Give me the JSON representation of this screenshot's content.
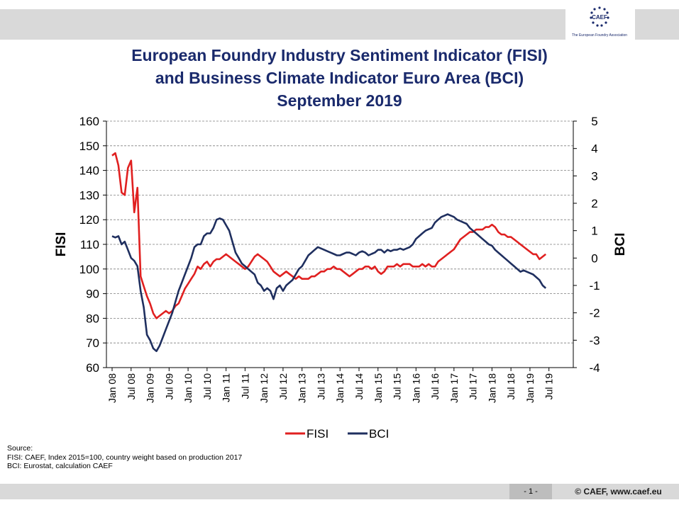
{
  "header": {
    "logo_text": "CAEF",
    "logo_subtitle": "The European Foundry Association"
  },
  "title_lines": [
    "European Foundry Industry Sentiment Indicator (FISI)",
    "and Business Climate Indicator Euro Area (BCI)",
    "September 2019"
  ],
  "chart_data": {
    "type": "line",
    "left_axis": {
      "label": "FISI",
      "range": [
        60,
        160
      ],
      "ticks": [
        "160",
        "150",
        "140",
        "130",
        "120",
        "110",
        "100",
        "90",
        "80",
        "70",
        "60"
      ]
    },
    "right_axis": {
      "label": "BCI",
      "range": [
        -4,
        5
      ],
      "ticks": [
        "5",
        "4",
        "3",
        "2",
        "1",
        "0",
        "-1",
        "-2",
        "-3",
        "-4"
      ]
    },
    "x_ticks": [
      "Jan 08",
      "Jul 08",
      "Jan 09",
      "Jul 09",
      "Jan 10",
      "Jul 10",
      "Jan 11",
      "Jul 11",
      "Jan 12",
      "Jul 12",
      "Jan 13",
      "Jul 13",
      "Jan 14",
      "Jul 14",
      "Jan 15",
      "Jul 15",
      "Jan 16",
      "Jul 16",
      "Jan 17",
      "Jul 17",
      "Jan 18",
      "Jul 18",
      "Jan 19",
      "Jul 19"
    ],
    "grid": "horizontal dashed",
    "legend_position": "bottom-center",
    "series": [
      {
        "name": "FISI",
        "axis": "left",
        "color": "#e02020",
        "points": [
          [
            "2008-01",
            146
          ],
          [
            "2008-02",
            147
          ],
          [
            "2008-03",
            142
          ],
          [
            "2008-04",
            131
          ],
          [
            "2008-05",
            130
          ],
          [
            "2008-06",
            141
          ],
          [
            "2008-07",
            144
          ],
          [
            "2008-08",
            123
          ],
          [
            "2008-09",
            133
          ],
          [
            "2008-10",
            97
          ],
          [
            "2008-11",
            93
          ],
          [
            "2008-12",
            89
          ],
          [
            "2009-01",
            86
          ],
          [
            "2009-02",
            82
          ],
          [
            "2009-03",
            80
          ],
          [
            "2009-04",
            81
          ],
          [
            "2009-05",
            82
          ],
          [
            "2009-06",
            83
          ],
          [
            "2009-07",
            82
          ],
          [
            "2009-08",
            83
          ],
          [
            "2009-09",
            85
          ],
          [
            "2009-10",
            86
          ],
          [
            "2009-11",
            89
          ],
          [
            "2009-12",
            92
          ],
          [
            "2010-01",
            94
          ],
          [
            "2010-02",
            96
          ],
          [
            "2010-03",
            98
          ],
          [
            "2010-04",
            101
          ],
          [
            "2010-05",
            100
          ],
          [
            "2010-06",
            102
          ],
          [
            "2010-07",
            103
          ],
          [
            "2010-08",
            101
          ],
          [
            "2010-09",
            103
          ],
          [
            "2010-10",
            104
          ],
          [
            "2010-11",
            104
          ],
          [
            "2010-12",
            105
          ],
          [
            "2011-01",
            106
          ],
          [
            "2011-02",
            105
          ],
          [
            "2011-03",
            104
          ],
          [
            "2011-04",
            103
          ],
          [
            "2011-05",
            102
          ],
          [
            "2011-06",
            101
          ],
          [
            "2011-07",
            100
          ],
          [
            "2011-08",
            101
          ],
          [
            "2011-09",
            103
          ],
          [
            "2011-10",
            105
          ],
          [
            "2011-11",
            106
          ],
          [
            "2011-12",
            105
          ],
          [
            "2012-01",
            104
          ],
          [
            "2012-02",
            103
          ],
          [
            "2012-03",
            101
          ],
          [
            "2012-04",
            99
          ],
          [
            "2012-05",
            98
          ],
          [
            "2012-06",
            97
          ],
          [
            "2012-07",
            98
          ],
          [
            "2012-08",
            99
          ],
          [
            "2012-09",
            98
          ],
          [
            "2012-10",
            97
          ],
          [
            "2012-11",
            96
          ],
          [
            "2012-12",
            97
          ],
          [
            "2013-01",
            96
          ],
          [
            "2013-02",
            96
          ],
          [
            "2013-03",
            96
          ],
          [
            "2013-04",
            97
          ],
          [
            "2013-05",
            97
          ],
          [
            "2013-06",
            98
          ],
          [
            "2013-07",
            99
          ],
          [
            "2013-08",
            99
          ],
          [
            "2013-09",
            100
          ],
          [
            "2013-10",
            100
          ],
          [
            "2013-11",
            101
          ],
          [
            "2013-12",
            100
          ],
          [
            "2014-01",
            100
          ],
          [
            "2014-02",
            99
          ],
          [
            "2014-03",
            98
          ],
          [
            "2014-04",
            97
          ],
          [
            "2014-05",
            98
          ],
          [
            "2014-06",
            99
          ],
          [
            "2014-07",
            100
          ],
          [
            "2014-08",
            100
          ],
          [
            "2014-09",
            101
          ],
          [
            "2014-10",
            101
          ],
          [
            "2014-11",
            100
          ],
          [
            "2014-12",
            101
          ],
          [
            "2015-01",
            99
          ],
          [
            "2015-02",
            98
          ],
          [
            "2015-03",
            99
          ],
          [
            "2015-04",
            101
          ],
          [
            "2015-05",
            101
          ],
          [
            "2015-06",
            101
          ],
          [
            "2015-07",
            102
          ],
          [
            "2015-08",
            101
          ],
          [
            "2015-09",
            102
          ],
          [
            "2015-10",
            102
          ],
          [
            "2015-11",
            102
          ],
          [
            "2015-12",
            101
          ],
          [
            "2016-01",
            101
          ],
          [
            "2016-02",
            101
          ],
          [
            "2016-03",
            102
          ],
          [
            "2016-04",
            101
          ],
          [
            "2016-05",
            102
          ],
          [
            "2016-06",
            101
          ],
          [
            "2016-07",
            101
          ],
          [
            "2016-08",
            103
          ],
          [
            "2016-09",
            104
          ],
          [
            "2016-10",
            105
          ],
          [
            "2016-11",
            106
          ],
          [
            "2016-12",
            107
          ],
          [
            "2017-01",
            108
          ],
          [
            "2017-02",
            110
          ],
          [
            "2017-03",
            112
          ],
          [
            "2017-04",
            113
          ],
          [
            "2017-05",
            114
          ],
          [
            "2017-06",
            115
          ],
          [
            "2017-07",
            115
          ],
          [
            "2017-08",
            116
          ],
          [
            "2017-09",
            116
          ],
          [
            "2017-10",
            116
          ],
          [
            "2017-11",
            117
          ],
          [
            "2017-12",
            117
          ],
          [
            "2018-01",
            118
          ],
          [
            "2018-02",
            117
          ],
          [
            "2018-03",
            115
          ],
          [
            "2018-04",
            114
          ],
          [
            "2018-05",
            114
          ],
          [
            "2018-06",
            113
          ],
          [
            "2018-07",
            113
          ],
          [
            "2018-08",
            112
          ],
          [
            "2018-09",
            111
          ],
          [
            "2018-10",
            110
          ],
          [
            "2018-11",
            109
          ],
          [
            "2018-12",
            108
          ],
          [
            "2019-01",
            107
          ],
          [
            "2019-02",
            106
          ],
          [
            "2019-03",
            106
          ],
          [
            "2019-04",
            104
          ],
          [
            "2019-05",
            105
          ],
          [
            "2019-06",
            106
          ]
        ]
      },
      {
        "name": "BCI",
        "axis": "right",
        "color": "#1f2f5f",
        "points": [
          [
            "2008-01",
            0.8
          ],
          [
            "2008-02",
            0.75
          ],
          [
            "2008-03",
            0.8
          ],
          [
            "2008-04",
            0.5
          ],
          [
            "2008-05",
            0.6
          ],
          [
            "2008-06",
            0.3
          ],
          [
            "2008-07",
            0.0
          ],
          [
            "2008-08",
            -0.1
          ],
          [
            "2008-09",
            -0.3
          ],
          [
            "2008-10",
            -1.2
          ],
          [
            "2008-11",
            -1.8
          ],
          [
            "2008-12",
            -2.8
          ],
          [
            "2009-01",
            -3.0
          ],
          [
            "2009-02",
            -3.3
          ],
          [
            "2009-03",
            -3.4
          ],
          [
            "2009-04",
            -3.2
          ],
          [
            "2009-05",
            -2.9
          ],
          [
            "2009-06",
            -2.6
          ],
          [
            "2009-07",
            -2.3
          ],
          [
            "2009-08",
            -2.0
          ],
          [
            "2009-09",
            -1.6
          ],
          [
            "2009-10",
            -1.2
          ],
          [
            "2009-11",
            -0.9
          ],
          [
            "2009-12",
            -0.6
          ],
          [
            "2010-01",
            -0.3
          ],
          [
            "2010-02",
            0.0
          ],
          [
            "2010-03",
            0.4
          ],
          [
            "2010-04",
            0.5
          ],
          [
            "2010-05",
            0.5
          ],
          [
            "2010-06",
            0.8
          ],
          [
            "2010-07",
            0.9
          ],
          [
            "2010-08",
            0.9
          ],
          [
            "2010-09",
            1.1
          ],
          [
            "2010-10",
            1.4
          ],
          [
            "2010-11",
            1.45
          ],
          [
            "2010-12",
            1.4
          ],
          [
            "2011-01",
            1.2
          ],
          [
            "2011-02",
            1.0
          ],
          [
            "2011-03",
            0.6
          ],
          [
            "2011-04",
            0.2
          ],
          [
            "2011-05",
            0.0
          ],
          [
            "2011-06",
            -0.2
          ],
          [
            "2011-07",
            -0.3
          ],
          [
            "2011-08",
            -0.4
          ],
          [
            "2011-09",
            -0.5
          ],
          [
            "2011-10",
            -0.6
          ],
          [
            "2011-11",
            -0.9
          ],
          [
            "2011-12",
            -1.0
          ],
          [
            "2012-01",
            -1.2
          ],
          [
            "2012-02",
            -1.1
          ],
          [
            "2012-03",
            -1.2
          ],
          [
            "2012-04",
            -1.5
          ],
          [
            "2012-05",
            -1.1
          ],
          [
            "2012-06",
            -1.0
          ],
          [
            "2012-07",
            -1.2
          ],
          [
            "2012-08",
            -1.0
          ],
          [
            "2012-09",
            -0.9
          ],
          [
            "2012-10",
            -0.8
          ],
          [
            "2012-11",
            -0.6
          ],
          [
            "2012-12",
            -0.4
          ],
          [
            "2013-01",
            -0.3
          ],
          [
            "2013-02",
            -0.1
          ],
          [
            "2013-03",
            0.1
          ],
          [
            "2013-04",
            0.2
          ],
          [
            "2013-05",
            0.3
          ],
          [
            "2013-06",
            0.4
          ],
          [
            "2013-07",
            0.35
          ],
          [
            "2013-08",
            0.3
          ],
          [
            "2013-09",
            0.25
          ],
          [
            "2013-10",
            0.2
          ],
          [
            "2013-11",
            0.15
          ],
          [
            "2013-12",
            0.1
          ],
          [
            "2014-01",
            0.1
          ],
          [
            "2014-02",
            0.15
          ],
          [
            "2014-03",
            0.2
          ],
          [
            "2014-04",
            0.2
          ],
          [
            "2014-05",
            0.15
          ],
          [
            "2014-06",
            0.1
          ],
          [
            "2014-07",
            0.2
          ],
          [
            "2014-08",
            0.25
          ],
          [
            "2014-09",
            0.2
          ],
          [
            "2014-10",
            0.1
          ],
          [
            "2014-11",
            0.15
          ],
          [
            "2014-12",
            0.2
          ],
          [
            "2015-01",
            0.3
          ],
          [
            "2015-02",
            0.3
          ],
          [
            "2015-03",
            0.2
          ],
          [
            "2015-04",
            0.3
          ],
          [
            "2015-05",
            0.25
          ],
          [
            "2015-06",
            0.3
          ],
          [
            "2015-07",
            0.3
          ],
          [
            "2015-08",
            0.35
          ],
          [
            "2015-09",
            0.3
          ],
          [
            "2015-10",
            0.35
          ],
          [
            "2015-11",
            0.4
          ],
          [
            "2015-12",
            0.5
          ],
          [
            "2016-01",
            0.7
          ],
          [
            "2016-02",
            0.8
          ],
          [
            "2016-03",
            0.9
          ],
          [
            "2016-04",
            1.0
          ],
          [
            "2016-05",
            1.05
          ],
          [
            "2016-06",
            1.1
          ],
          [
            "2016-07",
            1.3
          ],
          [
            "2016-08",
            1.4
          ],
          [
            "2016-09",
            1.5
          ],
          [
            "2016-10",
            1.55
          ],
          [
            "2016-11",
            1.6
          ],
          [
            "2016-12",
            1.55
          ],
          [
            "2017-01",
            1.5
          ],
          [
            "2017-02",
            1.4
          ],
          [
            "2017-03",
            1.35
          ],
          [
            "2017-04",
            1.3
          ],
          [
            "2017-05",
            1.25
          ],
          [
            "2017-06",
            1.1
          ],
          [
            "2017-07",
            1.0
          ],
          [
            "2017-08",
            0.9
          ],
          [
            "2017-09",
            0.8
          ],
          [
            "2017-10",
            0.7
          ],
          [
            "2017-11",
            0.6
          ],
          [
            "2017-12",
            0.5
          ],
          [
            "2018-01",
            0.45
          ],
          [
            "2018-02",
            0.3
          ],
          [
            "2018-03",
            0.2
          ],
          [
            "2018-04",
            0.1
          ],
          [
            "2018-05",
            0.0
          ],
          [
            "2018-06",
            -0.1
          ],
          [
            "2018-07",
            -0.2
          ],
          [
            "2018-08",
            -0.3
          ],
          [
            "2018-09",
            -0.4
          ],
          [
            "2018-10",
            -0.5
          ],
          [
            "2018-11",
            -0.45
          ],
          [
            "2018-12",
            -0.5
          ],
          [
            "2019-01",
            -0.55
          ],
          [
            "2019-02",
            -0.6
          ],
          [
            "2019-03",
            -0.7
          ],
          [
            "2019-04",
            -0.8
          ],
          [
            "2019-05",
            -1.0
          ],
          [
            "2019-06",
            -1.1
          ]
        ]
      }
    ]
  },
  "source_lines": [
    "Source:",
    "FISI:  CAEF, Index 2015=100, country weight based on production 2017",
    "BCI:  Eurostat, calculation CAEF"
  ],
  "footer": {
    "page": "- 1 -",
    "copyright": "© CAEF,  www.caef.eu"
  }
}
